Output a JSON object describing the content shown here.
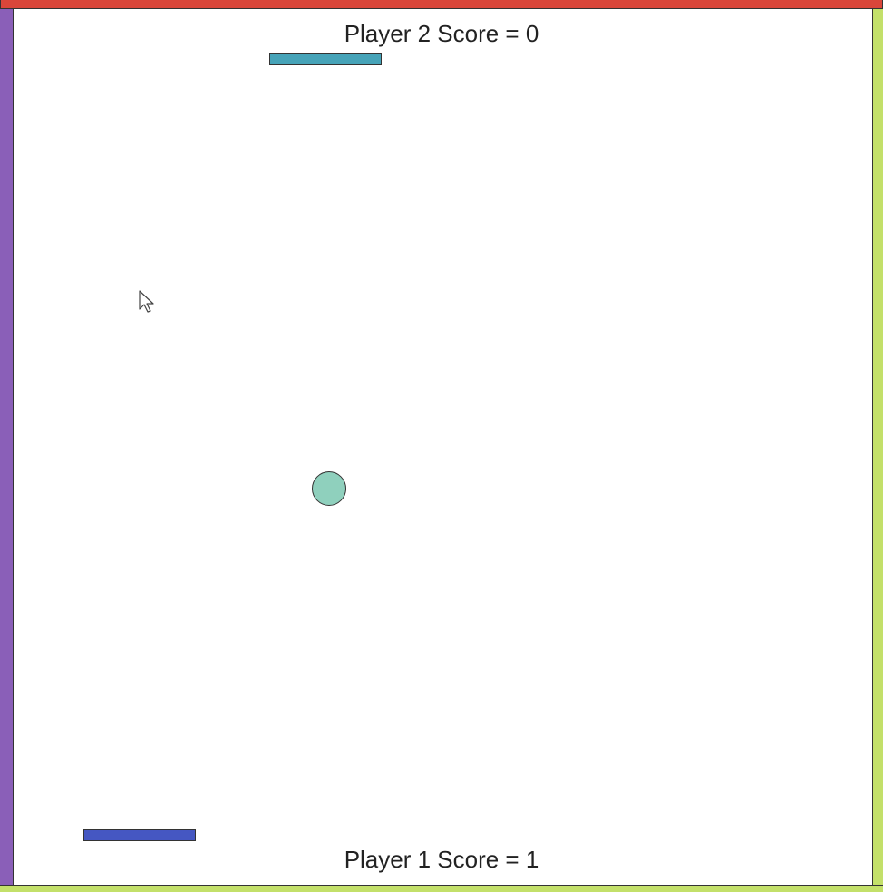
{
  "scores": {
    "player2_label": "Player 2 Score = 0",
    "player1_label": "Player 1 Score = 1"
  },
  "colors": {
    "wall_top": "#d9463a",
    "wall_left": "#8a5fb8",
    "wall_right": "#c3e06a",
    "wall_bottom": "#c3e06a",
    "paddle_player2": "#46a3b8",
    "paddle_player1": "#4557c2",
    "ball": "#8fd0bd"
  },
  "icons": {
    "cursor": "mouse-pointer-arrow"
  }
}
